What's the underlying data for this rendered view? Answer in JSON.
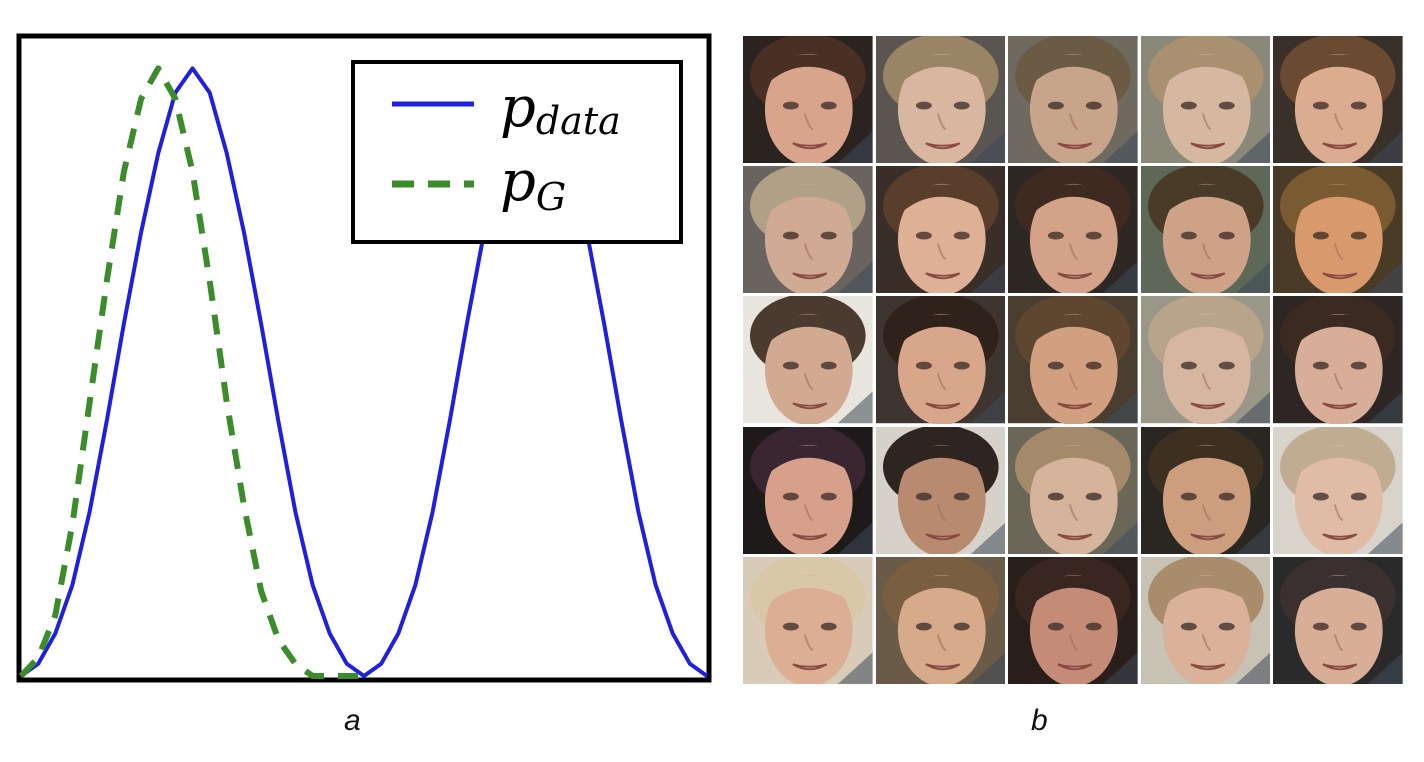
{
  "panels": {
    "a_label": "a",
    "b_label": "b"
  },
  "chart_data": {
    "type": "line",
    "title": "",
    "xlabel": "",
    "ylabel": "",
    "xlim": [
      0,
      10
    ],
    "ylim": [
      0,
      1.05
    ],
    "grid": false,
    "axis_ticks": false,
    "legend_placement": "top-right",
    "series": [
      {
        "name": "p_data",
        "legend_label_base": "p",
        "legend_label_sub": "data",
        "color": "#1f1fe0",
        "style": "solid",
        "x": [
          0,
          0.25,
          0.5,
          0.75,
          1,
          1.25,
          1.5,
          1.75,
          2,
          2.25,
          2.5,
          2.75,
          3,
          3.25,
          3.5,
          3.75,
          4,
          4.25,
          4.5,
          4.75,
          5,
          5.25,
          5.5,
          5.75,
          6,
          6.25,
          6.5,
          6.75,
          7,
          7.25,
          7.5,
          7.75,
          8,
          8.25,
          8.5,
          8.75,
          9,
          9.25,
          9.5,
          9.75,
          10
        ],
        "y": [
          0,
          0.02,
          0.07,
          0.15,
          0.27,
          0.42,
          0.58,
          0.73,
          0.86,
          0.96,
          1.0,
          0.96,
          0.86,
          0.73,
          0.58,
          0.42,
          0.27,
          0.15,
          0.07,
          0.02,
          0.0,
          0.02,
          0.07,
          0.15,
          0.27,
          0.42,
          0.58,
          0.73,
          0.86,
          0.96,
          1.0,
          0.96,
          0.86,
          0.73,
          0.58,
          0.42,
          0.27,
          0.15,
          0.07,
          0.02,
          0.0
        ]
      },
      {
        "name": "p_G",
        "legend_label_base": "p",
        "legend_label_sub": "G",
        "color": "#3c8c2c",
        "style": "dashed",
        "x": [
          0,
          0.25,
          0.5,
          0.75,
          1,
          1.25,
          1.5,
          1.75,
          2,
          2.25,
          2.5,
          2.75,
          3,
          3.25,
          3.5,
          3.75,
          4,
          4.25,
          4.5,
          4.75,
          5
        ],
        "y": [
          0,
          0.03,
          0.1,
          0.25,
          0.45,
          0.65,
          0.83,
          0.95,
          1.0,
          0.95,
          0.83,
          0.65,
          0.45,
          0.28,
          0.14,
          0.06,
          0.02,
          0.0,
          0.0,
          0.0,
          0.0
        ]
      }
    ]
  },
  "face_grid": {
    "rows": 5,
    "cols": 5,
    "tiles": [
      {
        "bg": "#2b2320",
        "skin": "#d9a48c",
        "hair": "#4a3024"
      },
      {
        "bg": "#5a5550",
        "skin": "#d8b6a0",
        "hair": "#9a8466"
      },
      {
        "bg": "#6e6a60",
        "skin": "#c8a48a",
        "hair": "#6b5a44"
      },
      {
        "bg": "#8a8878",
        "skin": "#d6b8a0",
        "hair": "#a89070"
      },
      {
        "bg": "#3a302a",
        "skin": "#dcac90",
        "hair": "#6a4a30"
      },
      {
        "bg": "#6a6460",
        "skin": "#d0aa92",
        "hair": "#b0a088"
      },
      {
        "bg": "#3a2e28",
        "skin": "#deb096",
        "hair": "#5a3e2c"
      },
      {
        "bg": "#2e2824",
        "skin": "#d4a288",
        "hair": "#3e2a20"
      },
      {
        "bg": "#5e6858",
        "skin": "#cea286",
        "hair": "#4a3a28"
      },
      {
        "bg": "#4a3a28",
        "skin": "#d89a6c",
        "hair": "#7a5a30"
      },
      {
        "bg": "#e8e4de",
        "skin": "#d2aa92",
        "hair": "#4a3a30"
      },
      {
        "bg": "#3e3430",
        "skin": "#d8a68a",
        "hair": "#2e221a"
      },
      {
        "bg": "#4a3e30",
        "skin": "#d2a080",
        "hair": "#5e4630"
      },
      {
        "bg": "#9a9688",
        "skin": "#d6b6a0",
        "hair": "#b8a48a"
      },
      {
        "bg": "#2e2624",
        "skin": "#d8ae98",
        "hair": "#3a2a22"
      },
      {
        "bg": "#1e1a1a",
        "skin": "#d6a08a",
        "hair": "#3a2630"
      },
      {
        "bg": "#d6d2ca",
        "skin": "#b88a70",
        "hair": "#2e2420"
      },
      {
        "bg": "#6a6658",
        "skin": "#d6b49c",
        "hair": "#a48a6a"
      },
      {
        "bg": "#2a2622",
        "skin": "#cc9e7e",
        "hair": "#3e3020"
      },
      {
        "bg": "#d8d4cc",
        "skin": "#e0bca6",
        "hair": "#c0ac90"
      },
      {
        "bg": "#d8ccb8",
        "skin": "#dcae94",
        "hair": "#d8c8a8"
      },
      {
        "bg": "#6a5a48",
        "skin": "#d6aa8a",
        "hair": "#7a5e40"
      },
      {
        "bg": "#2a1e1a",
        "skin": "#c48c76",
        "hair": "#3a2620"
      },
      {
        "bg": "#c8c2b4",
        "skin": "#dab29a",
        "hair": "#a88c6c"
      },
      {
        "bg": "#2a2a2a",
        "skin": "#d8ae96",
        "hair": "#3a3030"
      }
    ]
  }
}
